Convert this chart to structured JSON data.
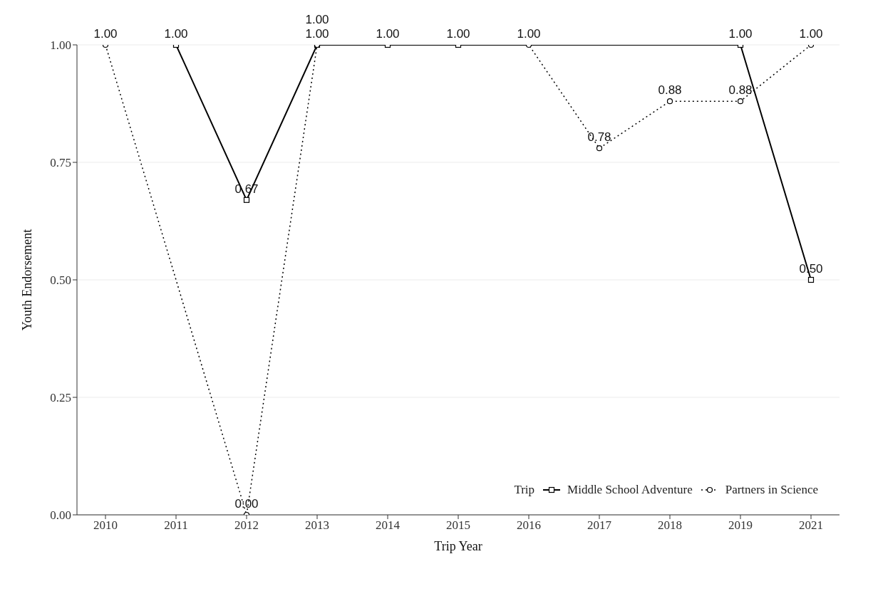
{
  "chart_data": {
    "type": "line",
    "xlabel": "Trip Year",
    "ylabel": "Youth Endorsement",
    "legend_title": "Trip",
    "categories": [
      "2010",
      "2011",
      "2012",
      "2013",
      "2014",
      "2015",
      "2016",
      "2017",
      "2018",
      "2019",
      "2021"
    ],
    "series": [
      {
        "name": "Middle School Adventure",
        "color": "#000000",
        "marker": "square",
        "line_style": "solid",
        "values": [
          null,
          1,
          0.67,
          1,
          1,
          1,
          null,
          null,
          null,
          1,
          0.5
        ],
        "value_labels": [
          null,
          "1.00",
          "0.67",
          "1.00",
          "1.00",
          "1.00",
          null,
          null,
          null,
          "1.00",
          "0.50"
        ]
      },
      {
        "name": "Partners in Science",
        "color": "#000000",
        "marker": "circle",
        "line_style": "dotted",
        "values": [
          1,
          null,
          0,
          1,
          null,
          null,
          1,
          0.78,
          0.88,
          0.88,
          1
        ],
        "value_labels": [
          "1.00",
          null,
          "0:00",
          "1.00",
          null,
          null,
          "1.00",
          "0.78",
          "0.88",
          "0.88",
          "1.00"
        ]
      }
    ],
    "ylim": [
      0,
      1
    ],
    "yticks": [
      {
        "value": 0,
        "label": "0.00"
      },
      {
        "value": 0.25,
        "label": "0.25"
      },
      {
        "value": 0.5,
        "label": "0.50"
      },
      {
        "value": 0.75,
        "label": "0.75"
      },
      {
        "value": 1,
        "label": "1.00"
      }
    ],
    "grid": "y",
    "legend": "bottom right"
  }
}
